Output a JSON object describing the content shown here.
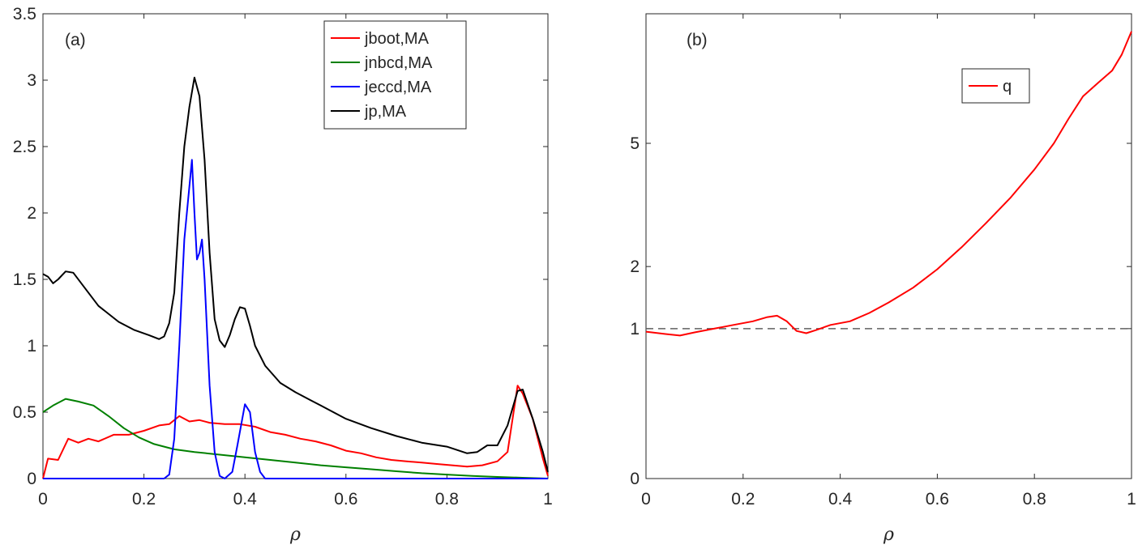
{
  "chart_data": [
    {
      "type": "line",
      "panel_label": "(a)",
      "xlabel": "ρ",
      "ylabel": "",
      "xlim": [
        0,
        1
      ],
      "ylim": [
        0,
        3.5
      ],
      "xticks": [
        "0",
        "0.2",
        "0.4",
        "0.6",
        "0.8",
        "1"
      ],
      "xtick_values": [
        0,
        0.2,
        0.4,
        0.6,
        0.8,
        1
      ],
      "yticks": [
        "0",
        "0.5",
        "1",
        "1.5",
        "2",
        "2.5",
        "3",
        "3.5"
      ],
      "ytick_values": [
        0,
        0.5,
        1,
        1.5,
        2,
        2.5,
        3,
        3.5
      ],
      "grid": false,
      "legend_position": "top-right",
      "series": [
        {
          "name": "jboot,MA",
          "color": "#ff0000",
          "points": [
            [
              0,
              0
            ],
            [
              0.01,
              0.15
            ],
            [
              0.03,
              0.14
            ],
            [
              0.05,
              0.3
            ],
            [
              0.07,
              0.27
            ],
            [
              0.09,
              0.3
            ],
            [
              0.11,
              0.28
            ],
            [
              0.14,
              0.33
            ],
            [
              0.17,
              0.33
            ],
            [
              0.2,
              0.36
            ],
            [
              0.23,
              0.4
            ],
            [
              0.25,
              0.41
            ],
            [
              0.27,
              0.47
            ],
            [
              0.29,
              0.43
            ],
            [
              0.31,
              0.44
            ],
            [
              0.33,
              0.42
            ],
            [
              0.36,
              0.41
            ],
            [
              0.39,
              0.41
            ],
            [
              0.42,
              0.39
            ],
            [
              0.45,
              0.35
            ],
            [
              0.48,
              0.33
            ],
            [
              0.51,
              0.3
            ],
            [
              0.54,
              0.28
            ],
            [
              0.57,
              0.25
            ],
            [
              0.6,
              0.21
            ],
            [
              0.63,
              0.19
            ],
            [
              0.66,
              0.16
            ],
            [
              0.69,
              0.14
            ],
            [
              0.72,
              0.13
            ],
            [
              0.75,
              0.12
            ],
            [
              0.78,
              0.11
            ],
            [
              0.81,
              0.1
            ],
            [
              0.84,
              0.09
            ],
            [
              0.87,
              0.1
            ],
            [
              0.9,
              0.13
            ],
            [
              0.92,
              0.2
            ],
            [
              0.93,
              0.45
            ],
            [
              0.94,
              0.7
            ],
            [
              0.95,
              0.64
            ],
            [
              0.97,
              0.45
            ],
            [
              0.99,
              0.15
            ],
            [
              1.0,
              0.02
            ]
          ]
        },
        {
          "name": "jnbcd,MA",
          "color": "#008000",
          "points": [
            [
              0,
              0.5
            ],
            [
              0.02,
              0.55
            ],
            [
              0.045,
              0.6
            ],
            [
              0.07,
              0.58
            ],
            [
              0.1,
              0.55
            ],
            [
              0.13,
              0.47
            ],
            [
              0.16,
              0.38
            ],
            [
              0.19,
              0.31
            ],
            [
              0.22,
              0.26
            ],
            [
              0.26,
              0.22
            ],
            [
              0.3,
              0.2
            ],
            [
              0.35,
              0.18
            ],
            [
              0.4,
              0.16
            ],
            [
              0.45,
              0.14
            ],
            [
              0.5,
              0.12
            ],
            [
              0.55,
              0.1
            ],
            [
              0.6,
              0.085
            ],
            [
              0.65,
              0.07
            ],
            [
              0.7,
              0.055
            ],
            [
              0.75,
              0.04
            ],
            [
              0.8,
              0.03
            ],
            [
              0.85,
              0.02
            ],
            [
              0.9,
              0.012
            ],
            [
              0.95,
              0.006
            ],
            [
              1.0,
              0
            ]
          ]
        },
        {
          "name": "jeccd,MA",
          "color": "#0000ff",
          "points": [
            [
              0,
              0
            ],
            [
              0.24,
              0
            ],
            [
              0.25,
              0.03
            ],
            [
              0.26,
              0.3
            ],
            [
              0.27,
              1.0
            ],
            [
              0.28,
              1.8
            ],
            [
              0.295,
              2.4
            ],
            [
              0.3,
              2.0
            ],
            [
              0.305,
              1.65
            ],
            [
              0.31,
              1.7
            ],
            [
              0.315,
              1.8
            ],
            [
              0.32,
              1.5
            ],
            [
              0.33,
              0.7
            ],
            [
              0.34,
              0.2
            ],
            [
              0.35,
              0.02
            ],
            [
              0.36,
              0
            ],
            [
              0.375,
              0.05
            ],
            [
              0.385,
              0.25
            ],
            [
              0.4,
              0.56
            ],
            [
              0.41,
              0.5
            ],
            [
              0.42,
              0.2
            ],
            [
              0.43,
              0.05
            ],
            [
              0.44,
              0
            ],
            [
              1.0,
              0
            ]
          ]
        },
        {
          "name": "jp,MA",
          "color": "#000000",
          "points": [
            [
              0,
              1.54
            ],
            [
              0.01,
              1.52
            ],
            [
              0.02,
              1.47
            ],
            [
              0.03,
              1.5
            ],
            [
              0.045,
              1.56
            ],
            [
              0.06,
              1.55
            ],
            [
              0.08,
              1.45
            ],
            [
              0.11,
              1.3
            ],
            [
              0.15,
              1.18
            ],
            [
              0.18,
              1.12
            ],
            [
              0.21,
              1.08
            ],
            [
              0.23,
              1.05
            ],
            [
              0.24,
              1.07
            ],
            [
              0.25,
              1.17
            ],
            [
              0.26,
              1.4
            ],
            [
              0.27,
              2.0
            ],
            [
              0.28,
              2.5
            ],
            [
              0.29,
              2.8
            ],
            [
              0.3,
              3.02
            ],
            [
              0.31,
              2.88
            ],
            [
              0.32,
              2.4
            ],
            [
              0.33,
              1.7
            ],
            [
              0.34,
              1.2
            ],
            [
              0.35,
              1.04
            ],
            [
              0.36,
              0.99
            ],
            [
              0.37,
              1.08
            ],
            [
              0.38,
              1.2
            ],
            [
              0.39,
              1.29
            ],
            [
              0.4,
              1.28
            ],
            [
              0.41,
              1.15
            ],
            [
              0.42,
              1.0
            ],
            [
              0.44,
              0.85
            ],
            [
              0.47,
              0.72
            ],
            [
              0.5,
              0.65
            ],
            [
              0.55,
              0.55
            ],
            [
              0.6,
              0.45
            ],
            [
              0.65,
              0.38
            ],
            [
              0.7,
              0.32
            ],
            [
              0.75,
              0.27
            ],
            [
              0.8,
              0.24
            ],
            [
              0.84,
              0.19
            ],
            [
              0.86,
              0.2
            ],
            [
              0.88,
              0.25
            ],
            [
              0.9,
              0.25
            ],
            [
              0.92,
              0.4
            ],
            [
              0.94,
              0.66
            ],
            [
              0.95,
              0.67
            ],
            [
              0.97,
              0.45
            ],
            [
              0.99,
              0.2
            ],
            [
              1.0,
              0.05
            ]
          ]
        }
      ]
    },
    {
      "type": "line",
      "panel_label": "(b)",
      "xlabel": "ρ",
      "ylabel": "",
      "xlim": [
        0,
        1
      ],
      "scale": "sqrt",
      "yticks": [
        "0",
        "1",
        "2",
        "5"
      ],
      "ytick_values": [
        0,
        1,
        2,
        5
      ],
      "xticks": [
        "0",
        "0.2",
        "0.4",
        "0.6",
        "0.8",
        "1"
      ],
      "xtick_values": [
        0,
        0.2,
        0.4,
        0.6,
        0.8,
        1
      ],
      "grid": false,
      "legend_position": "top-center",
      "reference_line": {
        "y": 1,
        "style": "dashed",
        "color": "#606060"
      },
      "series": [
        {
          "name": "q",
          "color": "#ff0000",
          "points": [
            [
              0,
              0.96
            ],
            [
              0.04,
              0.93
            ],
            [
              0.07,
              0.91
            ],
            [
              0.1,
              0.95
            ],
            [
              0.14,
              1.0
            ],
            [
              0.18,
              1.05
            ],
            [
              0.22,
              1.1
            ],
            [
              0.25,
              1.16
            ],
            [
              0.27,
              1.18
            ],
            [
              0.29,
              1.1
            ],
            [
              0.31,
              0.97
            ],
            [
              0.33,
              0.94
            ],
            [
              0.35,
              0.98
            ],
            [
              0.38,
              1.05
            ],
            [
              0.42,
              1.1
            ],
            [
              0.46,
              1.22
            ],
            [
              0.5,
              1.38
            ],
            [
              0.55,
              1.62
            ],
            [
              0.6,
              1.95
            ],
            [
              0.65,
              2.38
            ],
            [
              0.7,
              2.9
            ],
            [
              0.75,
              3.5
            ],
            [
              0.8,
              4.25
            ],
            [
              0.84,
              5.0
            ],
            [
              0.87,
              5.75
            ],
            [
              0.9,
              6.5
            ],
            [
              0.93,
              6.95
            ],
            [
              0.96,
              7.4
            ],
            [
              0.98,
              8.0
            ],
            [
              1.0,
              8.9
            ]
          ]
        }
      ]
    }
  ]
}
